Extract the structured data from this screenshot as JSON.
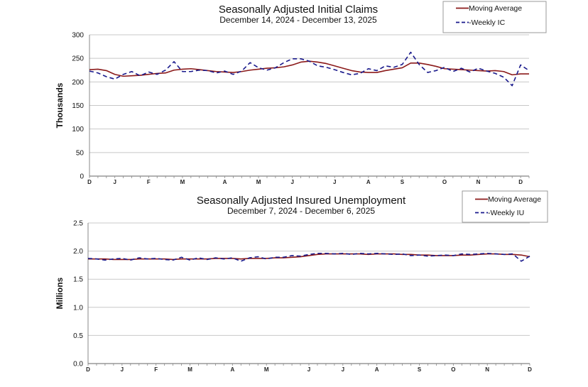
{
  "chart_data": [
    {
      "type": "line",
      "title": "Seasonally Adjusted Initial Claims",
      "subtitle": "December 14, 2024 - December 13, 2025",
      "ylabel": "Thousands",
      "ylim": [
        0,
        300
      ],
      "yticks": [
        "0",
        "50",
        "100",
        "150",
        "200",
        "250",
        "300"
      ],
      "ytick_values": [
        0,
        50,
        100,
        150,
        200,
        250,
        300
      ],
      "xtick_labels": [
        "D",
        "J",
        "F",
        "M",
        "A",
        "M",
        "J",
        "J",
        "A",
        "S",
        "O",
        "N",
        "D"
      ],
      "xtick_weeks": [
        0,
        3,
        7,
        11,
        16,
        20,
        24,
        29,
        33,
        37,
        42,
        46,
        51
      ],
      "legend_location": "top-right",
      "series": [
        {
          "name": "Moving Average",
          "legend_label": "Moving Average",
          "color": "#8b1a1a",
          "style": "solid",
          "values": [
            226,
            227,
            224,
            216,
            212,
            213,
            214,
            216,
            218,
            219,
            225,
            227,
            228,
            226,
            224,
            222,
            221,
            220,
            222,
            225,
            227,
            229,
            230,
            232,
            236,
            242,
            244,
            242,
            239,
            234,
            229,
            224,
            221,
            220,
            220,
            224,
            227,
            230,
            240,
            240,
            237,
            233,
            228,
            227,
            226,
            225,
            224,
            223,
            224,
            222,
            215,
            217,
            217
          ]
        },
        {
          "name": "Weekly IC",
          "legend_label": "-Weekly IC",
          "color": "#1a1a8c",
          "style": "dashed",
          "values": [
            223,
            219,
            211,
            206,
            216,
            222,
            213,
            221,
            216,
            225,
            243,
            222,
            222,
            225,
            224,
            219,
            223,
            216,
            223,
            241,
            230,
            225,
            230,
            241,
            249,
            249,
            244,
            234,
            231,
            226,
            220,
            215,
            218,
            228,
            224,
            234,
            231,
            237,
            263,
            237,
            220,
            224,
            231,
            222,
            229,
            221,
            229,
            223,
            218,
            210,
            192,
            236,
            224
          ]
        }
      ]
    },
    {
      "type": "line",
      "title": "Seasonally Adjusted Insured Unemployment",
      "subtitle": "December 7, 2024 - December 6, 2025",
      "ylabel": "Millions",
      "ylim": [
        0,
        2.5
      ],
      "yticks": [
        "0.0",
        "0.5",
        "1.0",
        "1.5",
        "2.0",
        "2.5"
      ],
      "ytick_values": [
        0,
        0.5,
        1.0,
        1.5,
        2.0,
        2.5
      ],
      "xtick_labels": [
        "D",
        "J",
        "F",
        "M",
        "A",
        "M",
        "J",
        "J",
        "A",
        "S",
        "O",
        "N",
        "D"
      ],
      "xtick_weeks": [
        0,
        4,
        8,
        12,
        17,
        21,
        26,
        30,
        34,
        39,
        43,
        47,
        52
      ],
      "legend_location": "top-right",
      "series": [
        {
          "name": "Moving Average",
          "legend_label": "Moving Average",
          "color": "#8b1a1a",
          "style": "solid",
          "values": [
            1.86,
            1.86,
            1.86,
            1.85,
            1.85,
            1.85,
            1.86,
            1.86,
            1.86,
            1.86,
            1.85,
            1.86,
            1.86,
            1.86,
            1.86,
            1.87,
            1.87,
            1.87,
            1.86,
            1.87,
            1.87,
            1.87,
            1.88,
            1.88,
            1.89,
            1.9,
            1.92,
            1.94,
            1.95,
            1.95,
            1.95,
            1.95,
            1.95,
            1.94,
            1.95,
            1.95,
            1.95,
            1.94,
            1.94,
            1.93,
            1.93,
            1.92,
            1.92,
            1.92,
            1.93,
            1.93,
            1.94,
            1.95,
            1.95,
            1.94,
            1.94,
            1.93,
            1.9
          ]
        },
        {
          "name": "Weekly IU",
          "legend_label": "-Weekly IU",
          "color": "#1a1a8c",
          "style": "dashed",
          "values": [
            1.87,
            1.86,
            1.84,
            1.86,
            1.87,
            1.84,
            1.88,
            1.86,
            1.87,
            1.85,
            1.84,
            1.89,
            1.84,
            1.88,
            1.85,
            1.88,
            1.86,
            1.88,
            1.82,
            1.88,
            1.9,
            1.86,
            1.89,
            1.89,
            1.92,
            1.91,
            1.94,
            1.96,
            1.96,
            1.95,
            1.96,
            1.94,
            1.96,
            1.95,
            1.96,
            1.95,
            1.94,
            1.95,
            1.92,
            1.93,
            1.91,
            1.92,
            1.93,
            1.92,
            1.95,
            1.94,
            1.95,
            1.96,
            1.95,
            1.94,
            1.95,
            1.82,
            1.91
          ]
        }
      ]
    }
  ]
}
